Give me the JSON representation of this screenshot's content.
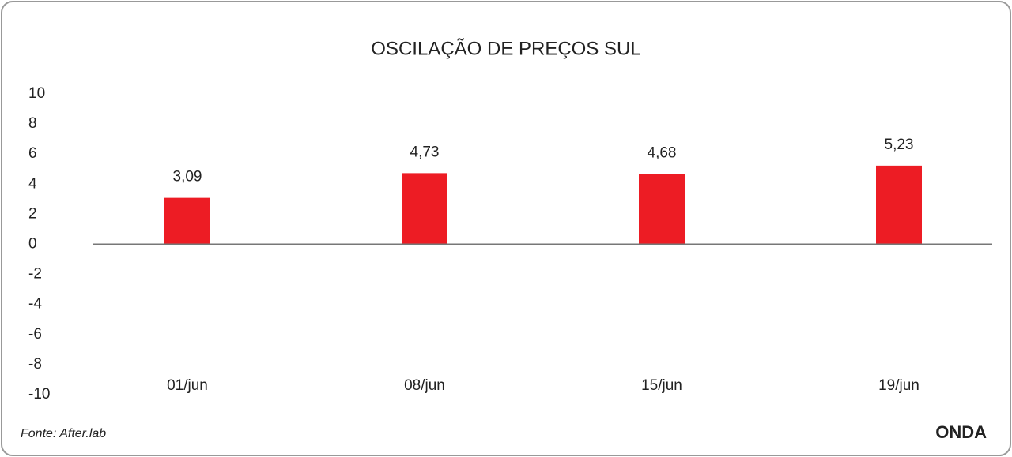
{
  "chart_data": {
    "type": "bar",
    "title": "OSCILAÇÃO DE PREÇOS SUL",
    "categories": [
      "01/jun",
      "08/jun",
      "15/jun",
      "19/jun"
    ],
    "values": [
      3.09,
      4.73,
      4.68,
      5.23
    ],
    "value_labels": [
      "3,09",
      "4,73",
      "4,68",
      "5,23"
    ],
    "color": "#ed1c24",
    "ylim": [
      -10,
      10
    ],
    "yticks": [
      -10,
      -8,
      -6,
      -4,
      -2,
      0,
      2,
      4,
      6,
      8,
      10
    ],
    "grid": false
  },
  "source": "Fonte: After.lab",
  "logo": "ONDA"
}
